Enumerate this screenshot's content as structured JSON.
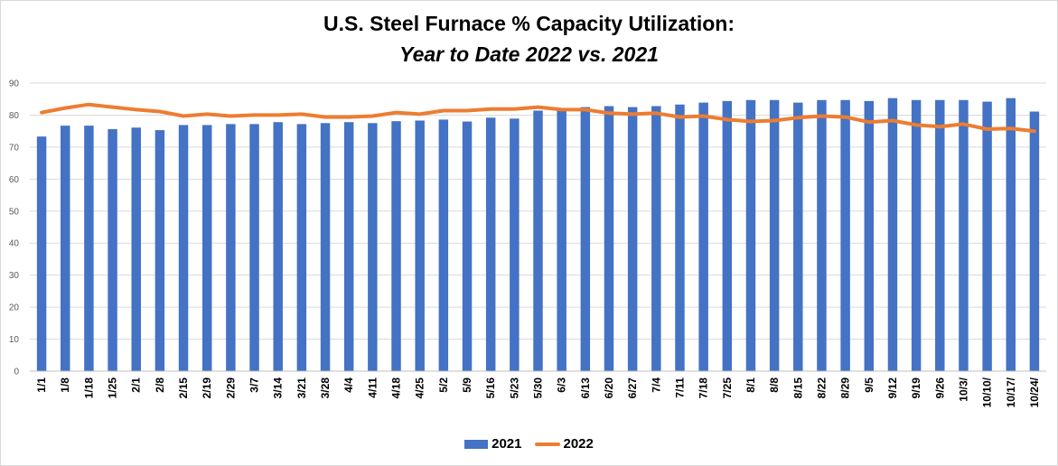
{
  "chart_data": {
    "type": "bar",
    "title": "U.S. Steel Furnace % Capacity Utilization:",
    "subtitle": "Year to Date 2022 vs. 2021",
    "categories": [
      "1/1",
      "1/8",
      "1/18",
      "1/25",
      "2/1",
      "2/8",
      "2/15",
      "2/19",
      "2/29",
      "3/7",
      "3/14",
      "3/21",
      "3/28",
      "4/4",
      "4/11",
      "4/18",
      "4/25",
      "5/2",
      "5/9",
      "5/16",
      "5/23",
      "5/30",
      "6/3",
      "6/13",
      "6/20",
      "6/27",
      "7/4",
      "7/11",
      "7/18",
      "7/25",
      "8/1",
      "8/8",
      "8/15",
      "8/22",
      "8/29",
      "9/5",
      "9/12",
      "9/19",
      "9/26",
      "10/3/",
      "10/10/",
      "10/17/",
      "10/24/"
    ],
    "ylim": [
      0,
      90
    ],
    "yticks": [
      0,
      10,
      20,
      30,
      40,
      50,
      60,
      70,
      80,
      90
    ],
    "grid": true,
    "legend_position": "bottom",
    "series": [
      {
        "name": "2021",
        "type": "bar",
        "color": "#4472C4",
        "values": [
          73.3,
          76.7,
          76.7,
          75.6,
          76.1,
          75.3,
          76.9,
          76.9,
          77.2,
          77.2,
          77.8,
          77.2,
          77.5,
          77.8,
          77.5,
          78.1,
          78.3,
          78.6,
          78.0,
          79.2,
          78.9,
          81.4,
          81.4,
          82.5,
          82.8,
          82.5,
          82.8,
          83.3,
          83.9,
          84.4,
          84.7,
          84.7,
          83.9,
          84.7,
          84.7,
          84.4,
          85.3,
          84.7,
          84.7,
          84.7,
          84.2,
          85.3,
          81.1
        ]
      },
      {
        "name": "2022",
        "type": "line",
        "color": "#ED7D31",
        "values": [
          80.8,
          82.2,
          83.3,
          82.5,
          81.7,
          81.1,
          79.7,
          80.3,
          79.7,
          80.0,
          80.0,
          80.3,
          79.4,
          79.4,
          79.7,
          80.8,
          80.3,
          81.4,
          81.4,
          81.9,
          81.9,
          82.5,
          81.7,
          81.7,
          80.6,
          80.3,
          80.6,
          79.4,
          79.7,
          78.6,
          78.0,
          78.3,
          79.2,
          79.7,
          79.4,
          77.8,
          78.3,
          76.9,
          76.4,
          77.2,
          75.6,
          75.8,
          75.0
        ]
      }
    ]
  }
}
